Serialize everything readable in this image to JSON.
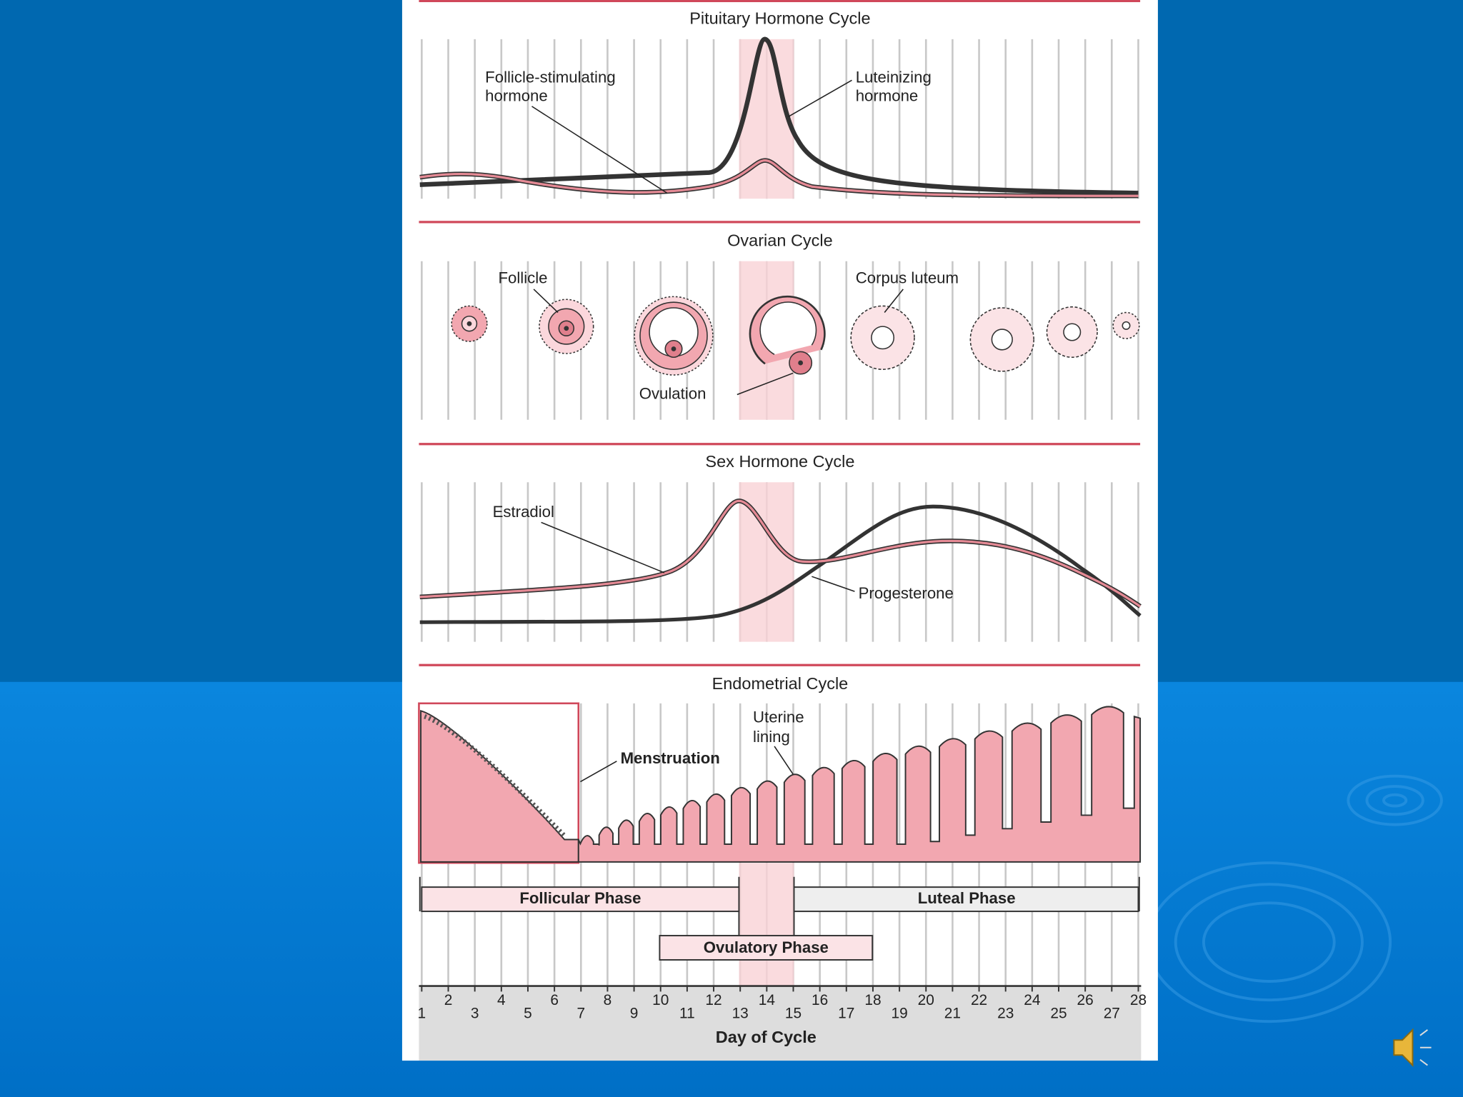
{
  "panels": [
    {
      "title": "Pituitary Hormone Cycle",
      "labels": [
        [
          "Follicle-stimulating",
          "hormone"
        ],
        [
          "Luteinizing",
          "hormone"
        ]
      ]
    },
    {
      "title": "Ovarian Cycle",
      "labels": [
        [
          "Follicle"
        ],
        [
          "Corpus luteum"
        ],
        [
          "Ovulation"
        ]
      ]
    },
    {
      "title": "Sex Hormone Cycle",
      "labels": [
        [
          "Estradiol"
        ],
        [
          "Progesterone"
        ]
      ]
    },
    {
      "title": "Endometrial Cycle",
      "labels": [
        [
          "Uterine",
          "lining"
        ],
        [
          "Menstruation"
        ]
      ]
    }
  ],
  "phases": [
    "Follicular Phase",
    "Luteal Phase",
    "Ovulatory Phase"
  ],
  "days": [
    1,
    2,
    3,
    4,
    5,
    6,
    7,
    8,
    9,
    10,
    11,
    12,
    13,
    14,
    15,
    16,
    17,
    18,
    19,
    20,
    21,
    22,
    23,
    24,
    25,
    26,
    27,
    28
  ],
  "axis_label": "Day of Cycle"
}
